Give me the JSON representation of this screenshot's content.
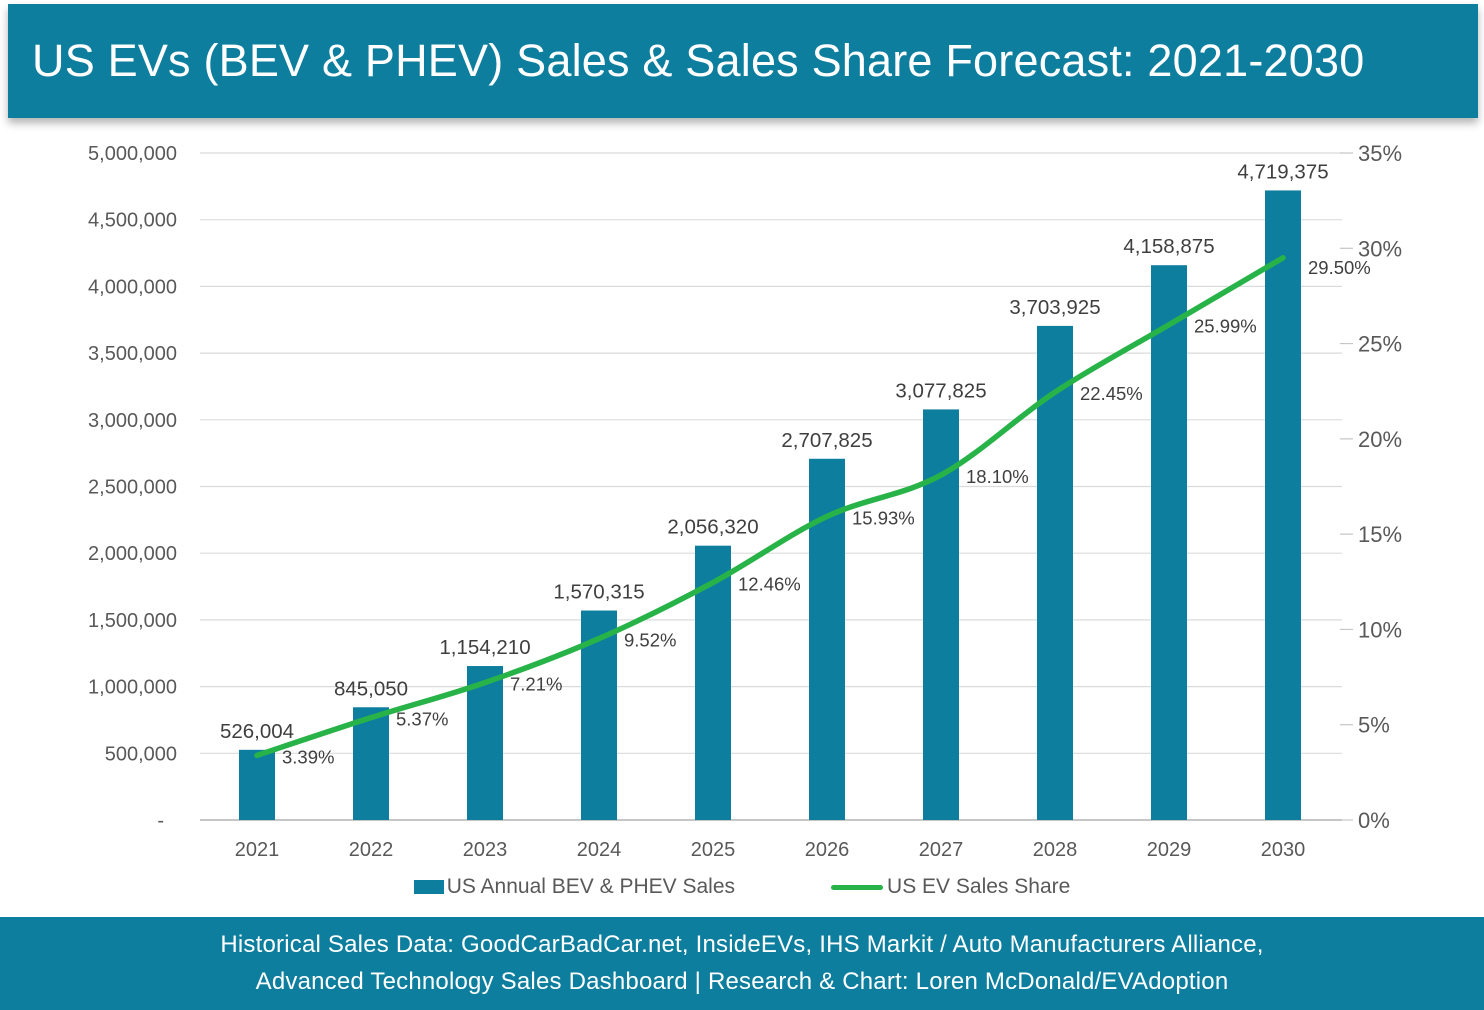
{
  "header": {
    "title": "US EVs (BEV & PHEV) Sales & Sales Share Forecast: 2021-2030"
  },
  "chart_data": {
    "type": "bar",
    "subtype": "combo-bar-line-dual-axis",
    "categories": [
      "2021",
      "2022",
      "2023",
      "2024",
      "2025",
      "2026",
      "2027",
      "2028",
      "2029",
      "2030"
    ],
    "series": [
      {
        "name": "US Annual BEV & PHEV Sales",
        "type": "bar",
        "axis": "left",
        "color": "#0E7E9E",
        "values": [
          526004,
          845050,
          1154210,
          1570315,
          2056320,
          2707825,
          3077825,
          3703925,
          4158875,
          4719375
        ],
        "labels": [
          "526,004",
          "845,050",
          "1,154,210",
          "1,570,315",
          "2,056,320",
          "2,707,825",
          "3,077,825",
          "3,703,925",
          "4,158,875",
          "4,719,375"
        ]
      },
      {
        "name": "US EV Sales Share",
        "type": "line",
        "axis": "right",
        "color": "#28B349",
        "values": [
          3.39,
          5.37,
          7.21,
          9.52,
          12.46,
          15.93,
          18.1,
          22.45,
          25.99,
          29.5
        ],
        "labels": [
          "3.39%",
          "5.37%",
          "7.21%",
          "9.52%",
          "12.46%",
          "15.93%",
          "18.10%",
          "22.45%",
          "25.99%",
          "29.50%"
        ]
      }
    ],
    "left_axis": {
      "min": 0,
      "max": 5000000,
      "step": 500000,
      "tick_labels": [
        "-",
        "500,000",
        "1,000,000",
        "1,500,000",
        "2,000,000",
        "2,500,000",
        "3,000,000",
        "3,500,000",
        "4,000,000",
        "4,500,000",
        "5,000,000"
      ]
    },
    "right_axis": {
      "min": 0,
      "max": 35,
      "step": 5,
      "tick_labels": [
        "0%",
        "5%",
        "10%",
        "15%",
        "20%",
        "25%",
        "30%",
        "35%"
      ]
    },
    "grid": true,
    "legend_position": "bottom"
  },
  "legend": {
    "items": [
      {
        "label": "US Annual BEV & PHEV Sales",
        "swatch": "bar-square",
        "color": "#0E7E9E"
      },
      {
        "label": "US EV Sales Share",
        "swatch": "line",
        "color": "#28B349"
      }
    ]
  },
  "footer": {
    "line1": "Historical Sales Data: GoodCarBadCar.net, InsideEVs, IHS Markit / Auto Manufacturers Alliance,",
    "line2": "Advanced Technology Sales Dashboard | Research & Chart: Loren McDonald/EVAdoption"
  },
  "colors": {
    "teal_banner": "#0E7E9E",
    "bar": "#0E7E9E",
    "line_green": "#28B349",
    "gridline": "#DBDBDB",
    "axis_line": "#C6C6C6",
    "axis_text": "#595959",
    "data_label_text": "#3F3F3F"
  }
}
